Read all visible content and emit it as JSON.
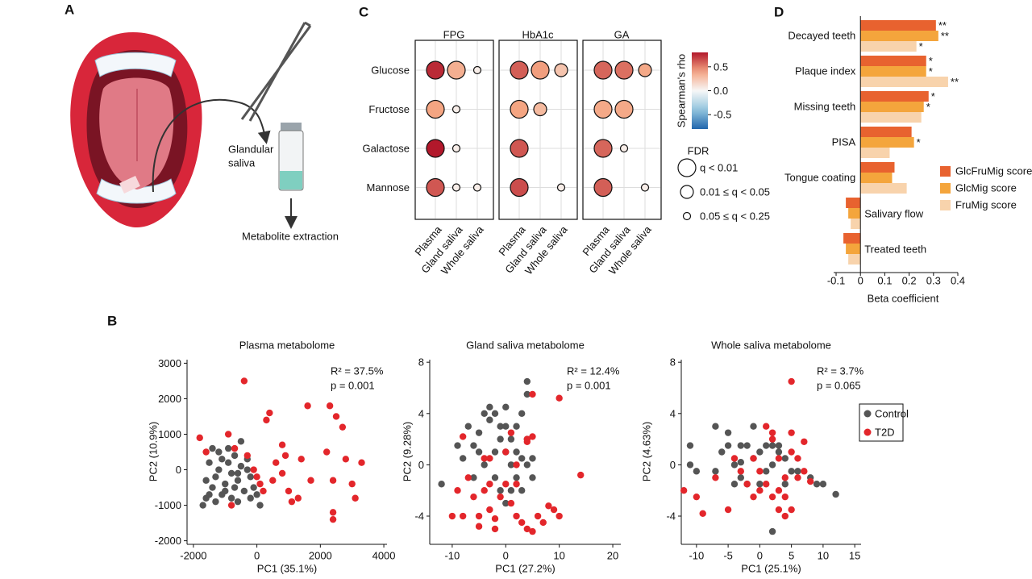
{
  "illustration": {
    "panel": "A",
    "vial_label": [
      "Glandular",
      "saliva"
    ],
    "step_label": "Metabolite extraction"
  },
  "chart_data": [
    {
      "type": "dot-matrix",
      "panel": "C",
      "rows": [
        "Glucose",
        "Fructose",
        "Galactose",
        "Mannose"
      ],
      "columns": [
        "Plasma",
        "Gland saliva",
        "Whole saliva"
      ],
      "facets": [
        {
          "title": "FPG",
          "rho": [
            [
              0.75,
              0.35,
              0.05
            ],
            [
              0.4,
              0.05,
              null
            ],
            [
              0.8,
              0.05,
              null
            ],
            [
              0.62,
              0.05,
              0.05
            ]
          ],
          "fdr": [
            [
              0,
              0,
              2
            ],
            [
              0,
              2,
              null
            ],
            [
              0,
              2,
              null
            ],
            [
              0,
              2,
              2
            ]
          ]
        },
        {
          "title": "HbA1c",
          "rho": [
            [
              0.6,
              0.42,
              0.25
            ],
            [
              0.4,
              0.3,
              null
            ],
            [
              0.62,
              null,
              null
            ],
            [
              0.65,
              null,
              0.05
            ]
          ],
          "fdr": [
            [
              0,
              0,
              1
            ],
            [
              0,
              1,
              null
            ],
            [
              0,
              null,
              null
            ],
            [
              0,
              null,
              2
            ]
          ]
        },
        {
          "title": "GA",
          "rho": [
            [
              0.58,
              0.55,
              0.38
            ],
            [
              0.38,
              0.38,
              null
            ],
            [
              0.58,
              0.05,
              null
            ],
            [
              0.6,
              null,
              0.05
            ]
          ],
          "fdr": [
            [
              0,
              0,
              1
            ],
            [
              0,
              0,
              null
            ],
            [
              0,
              2,
              null
            ],
            [
              0,
              null,
              2
            ]
          ]
        }
      ],
      "colorbar": {
        "title": "Spearman's rho",
        "lim": [
          -0.8,
          0.8
        ],
        "ticks": [
          0.5,
          {
            "value": 0,
            "label": "0.0"
          },
          -0.5
        ]
      },
      "fdr_legend": {
        "title": "FDR",
        "labels": [
          "q < 0.01",
          "0.01 ≤ q < 0.05",
          "0.05 ≤ q < 0.25"
        ]
      }
    },
    {
      "type": "hbar",
      "panel": "D",
      "categories": [
        "Decayed teeth",
        "Plaque index",
        "Missing teeth",
        "PISA",
        "Tongue coating",
        "Salivary flow",
        "Treated teeth"
      ],
      "series": [
        {
          "name": "GlcFruMig score",
          "color": "#e8622f",
          "values": [
            0.31,
            0.27,
            0.28,
            0.21,
            0.14,
            -0.06,
            -0.07
          ],
          "significance": [
            "**",
            "*",
            "*",
            null,
            null,
            null,
            null
          ]
        },
        {
          "name": "GlcMig score",
          "color": "#f4a53c",
          "values": [
            0.32,
            0.27,
            0.26,
            0.22,
            0.13,
            -0.05,
            -0.06
          ],
          "significance": [
            "**",
            "*",
            "*",
            "*",
            null,
            null,
            null
          ]
        },
        {
          "name": "FruMig score",
          "color": "#f8d3ac",
          "values": [
            0.23,
            0.36,
            0.25,
            0.12,
            0.19,
            -0.04,
            -0.05
          ],
          "significance": [
            "*",
            "**",
            null,
            null,
            null,
            null,
            null
          ]
        }
      ],
      "xlim": [
        -0.11,
        0.4
      ],
      "xticks": [
        -0.1,
        0,
        0.1,
        0.2,
        0.3,
        0.4
      ],
      "xlabel": "Beta coefficient"
    },
    {
      "type": "scatter",
      "panel": "B",
      "title": "Plasma metabolome",
      "xlabel": "PC1 (35.1%)",
      "ylabel": "PC2 (10.9%)",
      "annotation": [
        "R² = 37.5%",
        "p = 0.001"
      ],
      "xlim": [
        -2200,
        4100
      ],
      "xticks": [
        -2000,
        0,
        2000,
        4000
      ],
      "ylim": [
        -2100,
        3100
      ],
      "yticks": [
        -2000,
        -1000,
        0,
        1000,
        2000,
        3000
      ],
      "series": [
        {
          "color": "#555555",
          "x": [
            -1700,
            -1600,
            -1500,
            -1400,
            -1600,
            -1300,
            -1200,
            -1100,
            -1000,
            -900,
            -800,
            -700,
            -600,
            -500,
            -400,
            -300,
            -200,
            -100,
            0,
            -1300,
            -1100,
            -800,
            -600,
            -1500,
            -1400,
            -900,
            -700,
            -500,
            -300,
            -200,
            100,
            -1000,
            -1200,
            -600
          ],
          "y": [
            -1000,
            -800,
            -700,
            -500,
            -300,
            -200,
            0,
            300,
            -400,
            200,
            -100,
            400,
            -300,
            100,
            -600,
            0,
            -200,
            -500,
            -700,
            -900,
            -700,
            -800,
            -900,
            200,
            600,
            600,
            -500,
            800,
            300,
            -800,
            -1000,
            -600,
            500,
            -100
          ]
        },
        {
          "color": "#e3262b",
          "x": [
            -1800,
            -1600,
            -900,
            -700,
            -400,
            -800,
            -300,
            -100,
            0,
            100,
            200,
            300,
            400,
            500,
            600,
            800,
            800,
            900,
            1000,
            1100,
            1300,
            1400,
            1600,
            1700,
            2200,
            2300,
            2400,
            2400,
            2400,
            2500,
            2700,
            2800,
            3000,
            3100,
            3300
          ],
          "y": [
            900,
            500,
            1000,
            600,
            2500,
            -1000,
            400,
            0,
            -200,
            -400,
            -600,
            1400,
            1600,
            -300,
            200,
            -100,
            700,
            400,
            -600,
            -900,
            -800,
            300,
            1800,
            -300,
            500,
            1800,
            -1400,
            -1200,
            -300,
            1500,
            1200,
            300,
            -400,
            -800,
            200
          ]
        }
      ]
    },
    {
      "type": "scatter",
      "title": "Gland saliva metabolome",
      "xlabel": "PC1 (27.2%)",
      "ylabel": "PC2 (9.28%)",
      "annotation": [
        "R² = 12.4%",
        "p = 0.001"
      ],
      "xlim": [
        -14.2,
        21.5
      ],
      "xticks": [
        -10,
        0,
        10,
        20
      ],
      "ylim": [
        -6.2,
        8.2
      ],
      "yticks": [
        -4,
        0,
        4,
        8
      ],
      "series": [
        {
          "color": "#555555",
          "x": [
            -12,
            -9,
            -8,
            -7,
            -6,
            -5,
            -5,
            -4,
            -4,
            -3,
            -3,
            -2,
            -2,
            -2,
            -1,
            -1,
            0,
            0,
            0,
            1,
            1,
            1,
            2,
            2,
            2,
            3,
            3,
            4,
            4,
            4,
            4,
            5,
            5,
            -1,
            0,
            -6,
            3
          ],
          "y": [
            -1.5,
            1.5,
            0.5,
            3,
            -1,
            1,
            2.5,
            4,
            0,
            3.5,
            4.5,
            4,
            1,
            -1,
            3,
            2,
            3,
            4.5,
            1,
            2,
            0,
            -2,
            3,
            1,
            -1,
            4,
            0.5,
            6.5,
            5.5,
            2,
            0,
            0.5,
            -1,
            -2,
            -3,
            1.5,
            -2
          ]
        },
        {
          "color": "#e3262b",
          "x": [
            -9,
            -8,
            -8,
            -7,
            -6,
            -5,
            -4,
            -4,
            -3,
            -3,
            -2,
            -2,
            -1,
            0,
            0,
            1,
            1,
            2,
            2,
            3,
            4,
            4,
            4,
            5,
            5,
            6,
            7,
            8,
            9,
            10,
            10,
            14,
            -5,
            -10,
            2,
            5,
            -3
          ],
          "y": [
            -2,
            -4,
            2.2,
            -1,
            -2.5,
            -4,
            -2,
            0.5,
            -1.5,
            -3.5,
            -4.2,
            -5,
            -2.5,
            1,
            -1.5,
            2.5,
            -3,
            -4,
            0,
            -4.5,
            -5,
            1.8,
            2,
            -5.2,
            5.5,
            -4,
            -4.5,
            -3.2,
            -3.5,
            5.2,
            -4,
            -0.8,
            -4.8,
            -4,
            -1.5,
            2.2,
            0.5
          ]
        }
      ]
    },
    {
      "type": "scatter",
      "title": "Whole saliva metabolome",
      "xlabel": "PC1 (25.1%)",
      "ylabel": "PC2 (4.63%)",
      "annotation": [
        "R² = 3.7%",
        "p = 0.065"
      ],
      "xlim": [
        -12.4,
        16
      ],
      "xticks": [
        -10,
        -5,
        0,
        5,
        10,
        15
      ],
      "ylim": [
        -6.2,
        8.2
      ],
      "yticks": [
        -4,
        0,
        4,
        8
      ],
      "series": [
        {
          "name": "Control",
          "color": "#555555",
          "x": [
            -11,
            -11,
            -10,
            -7,
            -6,
            -5,
            -5,
            -4,
            -4,
            -3,
            -3,
            -2,
            -2,
            -1,
            -1,
            0,
            0,
            1,
            1,
            2,
            2,
            3,
            3,
            4,
            4,
            5,
            6,
            8,
            9,
            10,
            12,
            2,
            -7,
            -3
          ],
          "y": [
            1.5,
            0,
            -0.5,
            3,
            1,
            1.5,
            2.5,
            0,
            -1.5,
            1.5,
            -1,
            1.5,
            -1.5,
            3,
            0.5,
            1,
            -1.5,
            1.5,
            -0.5,
            0,
            1.5,
            1.5,
            1,
            0.5,
            -1.5,
            -0.5,
            -0.5,
            -1,
            -1.5,
            -1.5,
            -2.3,
            -5.2,
            -0.5,
            0.2
          ]
        },
        {
          "name": "T2D",
          "color": "#e3262b",
          "x": [
            -12,
            -10,
            -9,
            -7,
            -5,
            -4,
            -3,
            -2,
            -1,
            0,
            0,
            1,
            1,
            2,
            2,
            3,
            3,
            3,
            4,
            4,
            4,
            5,
            5,
            5,
            5,
            6,
            6,
            7,
            7,
            8,
            2,
            -1
          ],
          "y": [
            -2,
            -2.5,
            -3.8,
            -1,
            -3.5,
            0.5,
            -0.5,
            -1.5,
            0.5,
            -0.5,
            -2,
            -1.5,
            3,
            2,
            -2.5,
            0.5,
            -2,
            -3.5,
            -1,
            -2.5,
            -4,
            1,
            2.5,
            -3.5,
            6.5,
            0.5,
            -1,
            -0.5,
            1.8,
            -1.3,
            2.5,
            -2.5
          ]
        }
      ]
    }
  ]
}
